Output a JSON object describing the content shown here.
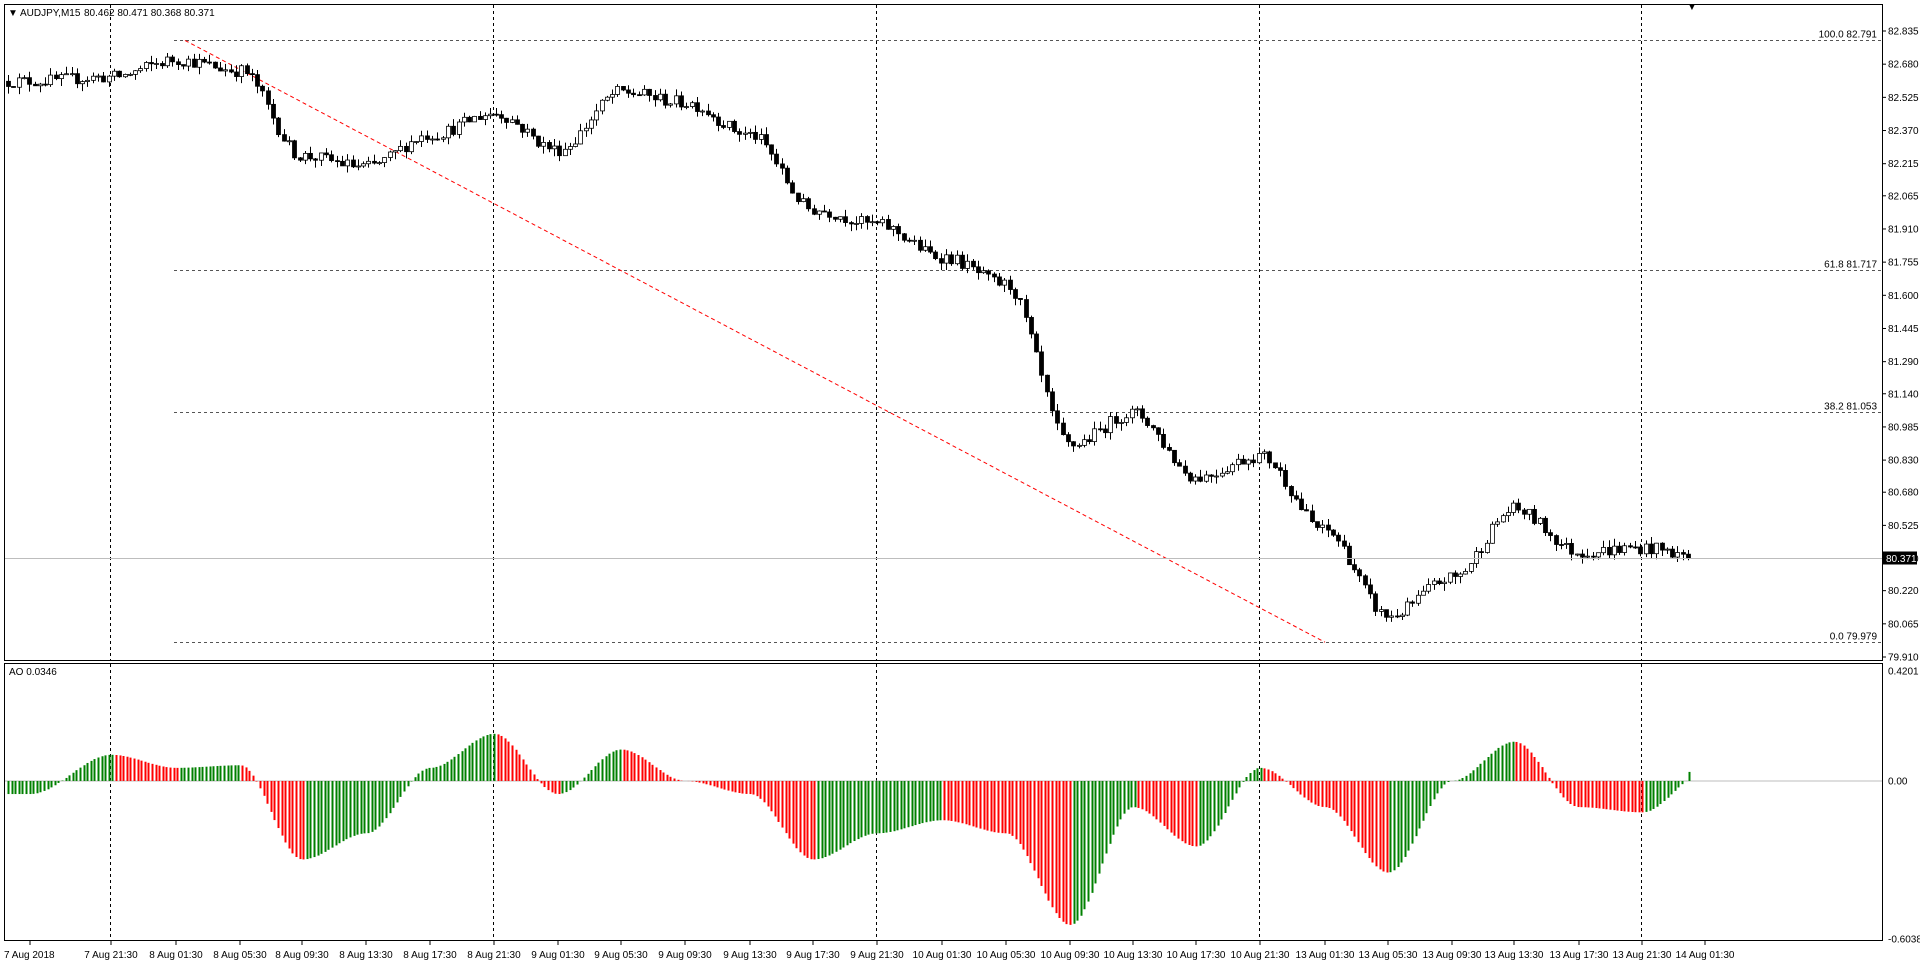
{
  "window": {
    "symbol_header": "AUDJPY,M15",
    "ohlc": "80.462 80.471 80.368 80.371",
    "price_tag": "80.371"
  },
  "price_axis": {
    "labels": [
      "82.835",
      "82.680",
      "82.525",
      "82.370",
      "82.215",
      "82.065",
      "81.910",
      "81.755",
      "81.600",
      "81.445",
      "81.290",
      "81.140",
      "80.985",
      "80.830",
      "80.680",
      "80.525",
      "80.370",
      "80.220",
      "80.065",
      "79.910"
    ],
    "range": [
      79.91,
      82.835
    ]
  },
  "fibonacci": [
    {
      "label": "100.0 82.791",
      "value": 82.791
    },
    {
      "label": "61.8 81.717",
      "value": 81.717
    },
    {
      "label": "38.2 81.053",
      "value": 81.053
    },
    {
      "label": "0.0 79.979",
      "value": 79.979
    }
  ],
  "time_axis": {
    "labels": [
      "7 Aug 2018",
      "7 Aug 21:30",
      "8 Aug 01:30",
      "8 Aug 05:30",
      "8 Aug 09:30",
      "8 Aug 13:30",
      "8 Aug 17:30",
      "8 Aug 21:30",
      "9 Aug 01:30",
      "9 Aug 05:30",
      "9 Aug 09:30",
      "9 Aug 13:30",
      "9 Aug 17:30",
      "9 Aug 21:30",
      "10 Aug 01:30",
      "10 Aug 05:30",
      "10 Aug 09:30",
      "10 Aug 13:30",
      "10 Aug 17:30",
      "10 Aug 21:30",
      "13 Aug 01:30",
      "13 Aug 05:30",
      "13 Aug 09:30",
      "13 Aug 13:30",
      "13 Aug 17:30",
      "13 Aug 21:30",
      "14 Aug 01:30"
    ]
  },
  "indicator": {
    "header": "AO 0.0346",
    "axis_labels": [
      "0.4201",
      "0.00",
      "-0.6038"
    ],
    "range": [
      -0.6038,
      0.4201
    ]
  },
  "colors": {
    "up": "#008000",
    "down": "#ff0000",
    "trendline": "#ff0000",
    "grid": "#000000",
    "frame": "#000000"
  },
  "chart_data": [
    {
      "type": "candlestick",
      "title": "AUDJPY,M15",
      "y_range": [
        79.91,
        82.835
      ],
      "close_anchors": [
        [
          "7 Aug 2018",
          82.6
        ],
        [
          "7 Aug 21:30",
          82.62
        ],
        [
          "8 Aug 01:30",
          82.7
        ],
        [
          "8 Aug 05:30",
          82.65
        ],
        [
          "8 Aug 09:30",
          82.25
        ],
        [
          "8 Aug 13:30",
          82.2
        ],
        [
          "8 Aug 17:30",
          82.35
        ],
        [
          "8 Aug 21:30",
          82.45
        ],
        [
          "9 Aug 01:30",
          82.28
        ],
        [
          "9 Aug 05:30",
          82.55
        ],
        [
          "9 Aug 09:30",
          82.5
        ],
        [
          "9 Aug 13:30",
          82.35
        ],
        [
          "9 Aug 17:30",
          82.0
        ],
        [
          "9 Aug 21:30",
          81.93
        ],
        [
          "10 Aug 01:30",
          81.78
        ],
        [
          "10 Aug 05:30",
          81.65
        ],
        [
          "10 Aug 09:30",
          80.9
        ],
        [
          "10 Aug 13:30",
          81.05
        ],
        [
          "10 Aug 17:30",
          80.75
        ],
        [
          "10 Aug 21:30",
          80.85
        ],
        [
          "13 Aug 01:30",
          80.5
        ],
        [
          "13 Aug 05:30",
          80.1
        ],
        [
          "13 Aug 09:30",
          80.28
        ],
        [
          "13 Aug 13:30",
          80.6
        ],
        [
          "13 Aug 17:30",
          80.4
        ],
        [
          "13 Aug 21:30",
          80.42
        ],
        [
          "14 Aug 01:30",
          80.371
        ]
      ],
      "last_close": 80.371
    },
    {
      "type": "bar",
      "title": "AO 0.0346",
      "y_range": [
        -0.6038,
        0.4201
      ],
      "value_anchors": [
        [
          "7 Aug 2018",
          -0.05
        ],
        [
          "7 Aug 21:30",
          0.1
        ],
        [
          "8 Aug 01:30",
          0.05
        ],
        [
          "8 Aug 05:30",
          0.06
        ],
        [
          "8 Aug 09:30",
          -0.3
        ],
        [
          "8 Aug 13:30",
          -0.2
        ],
        [
          "8 Aug 17:30",
          0.05
        ],
        [
          "8 Aug 21:30",
          0.18
        ],
        [
          "9 Aug 01:30",
          -0.05
        ],
        [
          "9 Aug 05:30",
          0.12
        ],
        [
          "9 Aug 09:30",
          0.0
        ],
        [
          "9 Aug 13:30",
          -0.05
        ],
        [
          "9 Aug 17:30",
          -0.3
        ],
        [
          "9 Aug 21:30",
          -0.2
        ],
        [
          "10 Aug 01:30",
          -0.15
        ],
        [
          "10 Aug 05:30",
          -0.2
        ],
        [
          "10 Aug 09:30",
          -0.55
        ],
        [
          "10 Aug 13:30",
          -0.1
        ],
        [
          "10 Aug 17:30",
          -0.25
        ],
        [
          "10 Aug 21:30",
          0.05
        ],
        [
          "13 Aug 01:30",
          -0.1
        ],
        [
          "13 Aug 05:30",
          -0.35
        ],
        [
          "13 Aug 09:30",
          0.0
        ],
        [
          "13 Aug 13:30",
          0.15
        ],
        [
          "13 Aug 17:30",
          -0.1
        ],
        [
          "13 Aug 21:30",
          -0.12
        ],
        [
          "14 Aug 01:30",
          0.0346
        ]
      ],
      "last_value": 0.0346
    }
  ]
}
